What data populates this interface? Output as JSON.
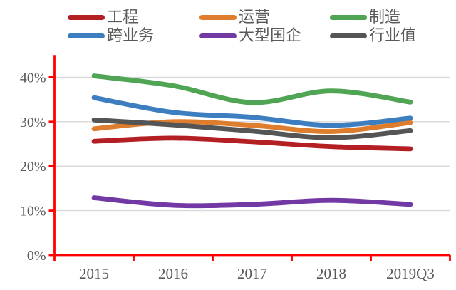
{
  "chart_data": {
    "type": "line",
    "title": "",
    "categories": [
      "2015",
      "2016",
      "2017",
      "2018",
      "2019Q3"
    ],
    "series": [
      {
        "name": "工程",
        "key": "engineering",
        "color": "#B41F24",
        "values": [
          25.6,
          26.3,
          25.5,
          24.4,
          23.9
        ]
      },
      {
        "name": "运营",
        "key": "operations",
        "color": "#DD7D2D",
        "values": [
          28.4,
          30.0,
          29.2,
          27.8,
          29.8
        ]
      },
      {
        "name": "制造",
        "key": "manufacturing",
        "color": "#4FA553",
        "values": [
          40.3,
          38.1,
          34.3,
          36.9,
          34.4
        ]
      },
      {
        "name": "跨业务",
        "key": "cross-business",
        "color": "#3C7EBF",
        "values": [
          35.4,
          32.1,
          31.0,
          29.2,
          30.8
        ]
      },
      {
        "name": "大型国企",
        "key": "large-soe",
        "color": "#7239A4",
        "values": [
          12.9,
          11.2,
          11.4,
          12.3,
          11.4
        ]
      },
      {
        "name": "行业值",
        "key": "industry-value",
        "color": "#555555",
        "values": [
          30.4,
          29.3,
          27.9,
          26.4,
          28.0
        ]
      }
    ],
    "y_axis": {
      "min": 0,
      "max": 45,
      "tick_step": 10,
      "tick_labels": [
        "0%",
        "10%",
        "20%",
        "30%",
        "40%"
      ]
    },
    "legend_position": "top",
    "legend_rows": 2,
    "grid": true,
    "smooth_lines": true,
    "axis_color": "#FF0000",
    "gridline_color": "#D9D9D9",
    "label_color": "#595959"
  }
}
